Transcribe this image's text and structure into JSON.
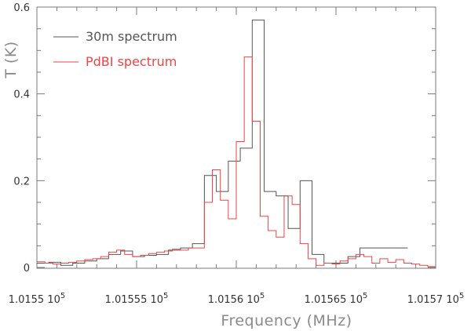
{
  "chart_data": {
    "type": "line",
    "step": true,
    "xlabel": "Frequency (MHz)",
    "ylabel": "T (K)",
    "xlim": [
      101550,
      101570
    ],
    "ylim": [
      -0.02,
      0.6
    ],
    "x_ticks": [
      {
        "value": 101550,
        "label": "1.0155 10",
        "exp": "5"
      },
      {
        "value": 101555,
        "label": "1.01555 10",
        "exp": "5"
      },
      {
        "value": 101560,
        "label": "1.0156 10",
        "exp": "5"
      },
      {
        "value": 101565,
        "label": "1.01565 10",
        "exp": "5"
      },
      {
        "value": 101570,
        "label": "1.0157 10",
        "exp": "5"
      }
    ],
    "y_ticks": [
      {
        "value": 0,
        "label": "0"
      },
      {
        "value": 0.2,
        "label": "0.2"
      },
      {
        "value": 0.4,
        "label": "0.4"
      },
      {
        "value": 0.6,
        "label": "0.6"
      }
    ],
    "legend_position": "top-left",
    "series": [
      {
        "name": "30m spectrum",
        "color": "#555555",
        "x": [
          101550.0,
          101550.6,
          101551.2,
          101551.8,
          101552.4,
          101553.0,
          101553.6,
          101554.2,
          101554.8,
          101555.4,
          101556.0,
          101556.6,
          101557.2,
          101557.8,
          101558.4,
          101559.0,
          101559.6,
          101560.2,
          101560.8,
          101561.4,
          101562.0,
          101562.6,
          101563.2,
          101563.8,
          101564.4,
          101565.0,
          101565.6,
          101566.2,
          101566.8,
          101567.4,
          101568.0
        ],
        "y": [
          0.01,
          0.012,
          0.005,
          0.01,
          0.015,
          0.02,
          0.03,
          0.038,
          0.025,
          0.028,
          0.03,
          0.04,
          0.045,
          0.055,
          0.212,
          0.175,
          0.245,
          0.275,
          0.57,
          0.175,
          0.165,
          0.09,
          0.2,
          0.03,
          0.01,
          0.01,
          0.025,
          0.045,
          0.045,
          0.045,
          0.045
        ]
      },
      {
        "name": "PdBI spectrum",
        "color": "#ee4444",
        "x": [
          101550.0,
          101550.4,
          101550.8,
          101551.2,
          101551.6,
          101552.0,
          101552.4,
          101552.8,
          101553.2,
          101553.6,
          101554.0,
          101554.4,
          101554.8,
          101555.2,
          101555.6,
          101556.0,
          101556.4,
          101556.8,
          101557.2,
          101557.6,
          101558.0,
          101558.4,
          101558.8,
          101559.2,
          101559.6,
          101560.0,
          101560.4,
          101560.8,
          101561.2,
          101561.6,
          101562.0,
          101562.4,
          101562.8,
          101563.2,
          101563.6,
          101564.0,
          101564.4,
          101564.8,
          101565.2,
          101565.6,
          101566.0,
          101566.4,
          101566.8,
          101567.2,
          101567.6,
          101568.0,
          101568.4,
          101568.8,
          101569.2,
          101569.6
        ],
        "y": [
          0.013,
          0.01,
          0.008,
          0.01,
          0.012,
          0.015,
          0.018,
          0.02,
          0.025,
          0.035,
          0.04,
          0.03,
          0.025,
          0.028,
          0.032,
          0.035,
          0.038,
          0.042,
          0.04,
          0.045,
          0.045,
          0.15,
          0.225,
          0.155,
          0.112,
          0.29,
          0.485,
          0.337,
          0.118,
          0.085,
          0.07,
          0.165,
          0.145,
          0.055,
          0.02,
          0.005,
          0.01,
          0.008,
          0.015,
          0.02,
          0.03,
          0.025,
          0.01,
          0.02,
          0.012,
          0.018,
          0.01,
          0.008,
          0.005,
          0.002
        ]
      }
    ]
  }
}
